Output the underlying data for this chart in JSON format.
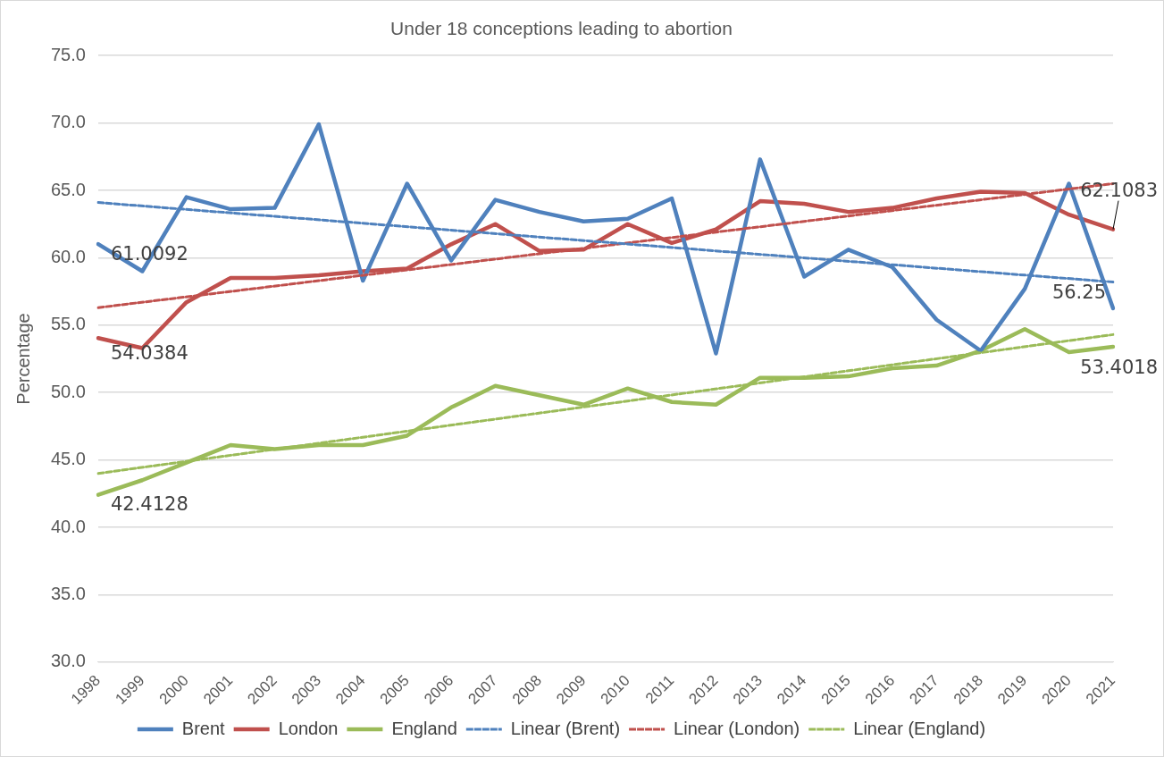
{
  "chart_data": {
    "type": "line",
    "title": "Under 18 conceptions leading to abortion",
    "ylabel": "Percentage",
    "categories": [
      "1998",
      "1999",
      "2000",
      "2001",
      "2002",
      "2003",
      "2004",
      "2005",
      "2006",
      "2007",
      "2008",
      "2009",
      "2010",
      "2011",
      "2012",
      "2013",
      "2014",
      "2015",
      "2016",
      "2017",
      "2018",
      "2019",
      "2020",
      "2021"
    ],
    "series": [
      {
        "name": "Brent",
        "color": "#4f81bd",
        "values": [
          61.0092,
          59.0,
          64.5,
          63.6,
          63.7,
          69.9,
          58.3,
          65.5,
          59.8,
          64.3,
          63.4,
          62.7,
          62.9,
          64.4,
          52.9,
          67.3,
          58.6,
          60.6,
          59.3,
          55.4,
          53.1,
          57.7,
          65.5,
          56.25
        ],
        "value_labels": [
          "61.0092",
          null,
          null,
          null,
          null,
          null,
          null,
          null,
          null,
          null,
          null,
          null,
          null,
          null,
          null,
          null,
          null,
          null,
          null,
          null,
          null,
          null,
          null,
          "56.25"
        ]
      },
      {
        "name": "London",
        "color": "#c0504d",
        "values": [
          54.0384,
          53.3,
          56.7,
          58.5,
          58.5,
          58.7,
          59.0,
          59.2,
          61.0,
          62.5,
          60.5,
          60.6,
          62.5,
          61.1,
          62.1,
          64.2,
          64.0,
          63.4,
          63.7,
          64.4,
          64.9,
          64.8,
          63.2,
          62.1083
        ],
        "value_labels": [
          "54.0384",
          null,
          null,
          null,
          null,
          null,
          null,
          null,
          null,
          null,
          null,
          null,
          null,
          null,
          null,
          null,
          null,
          null,
          null,
          null,
          null,
          null,
          null,
          "62.1083"
        ]
      },
      {
        "name": "England",
        "color": "#9bbb59",
        "values": [
          42.4128,
          43.5,
          44.8,
          46.1,
          45.8,
          46.1,
          46.1,
          46.8,
          48.9,
          50.5,
          49.8,
          49.1,
          50.3,
          49.3,
          49.1,
          51.1,
          51.1,
          51.2,
          51.8,
          52.0,
          53.1,
          54.7,
          53.0,
          53.4018
        ],
        "value_labels": [
          "42.4128",
          null,
          null,
          null,
          null,
          null,
          null,
          null,
          null,
          null,
          null,
          null,
          null,
          null,
          null,
          null,
          null,
          null,
          null,
          null,
          null,
          null,
          null,
          "53.4018"
        ]
      },
      {
        "name": "Linear (Brent)",
        "color": "#4f81bd",
        "line_style": "dashed",
        "values": [
          64.1,
          null,
          null,
          null,
          null,
          null,
          null,
          null,
          null,
          null,
          null,
          null,
          null,
          null,
          null,
          null,
          null,
          null,
          null,
          null,
          null,
          null,
          null,
          58.2
        ]
      },
      {
        "name": "Linear (London)",
        "color": "#c0504d",
        "line_style": "dashed",
        "values": [
          56.3,
          null,
          null,
          null,
          null,
          null,
          null,
          null,
          null,
          null,
          null,
          null,
          null,
          null,
          null,
          null,
          null,
          null,
          null,
          null,
          null,
          null,
          null,
          65.5
        ]
      },
      {
        "name": "Linear (England)",
        "color": "#9bbb59",
        "line_style": "dashed",
        "values": [
          44.0,
          null,
          null,
          null,
          null,
          null,
          null,
          null,
          null,
          null,
          null,
          null,
          null,
          null,
          null,
          null,
          null,
          null,
          null,
          null,
          null,
          null,
          null,
          54.3
        ]
      }
    ],
    "ylim": [
      30,
      75
    ],
    "yticks": [
      {
        "value": 30,
        "label": "30.0"
      },
      {
        "value": 35,
        "label": "35.0"
      },
      {
        "value": 40,
        "label": "40.0"
      },
      {
        "value": 45,
        "label": "45.0"
      },
      {
        "value": 50,
        "label": "50.0"
      },
      {
        "value": 55,
        "label": "55.0"
      },
      {
        "value": 60,
        "label": "60.0"
      },
      {
        "value": 65,
        "label": "65.0"
      },
      {
        "value": 70,
        "label": "70.0"
      },
      {
        "value": 75,
        "label": "75.0"
      }
    ],
    "grid": "y",
    "legend": "bottom",
    "marker": "none",
    "line_style": "solid"
  }
}
